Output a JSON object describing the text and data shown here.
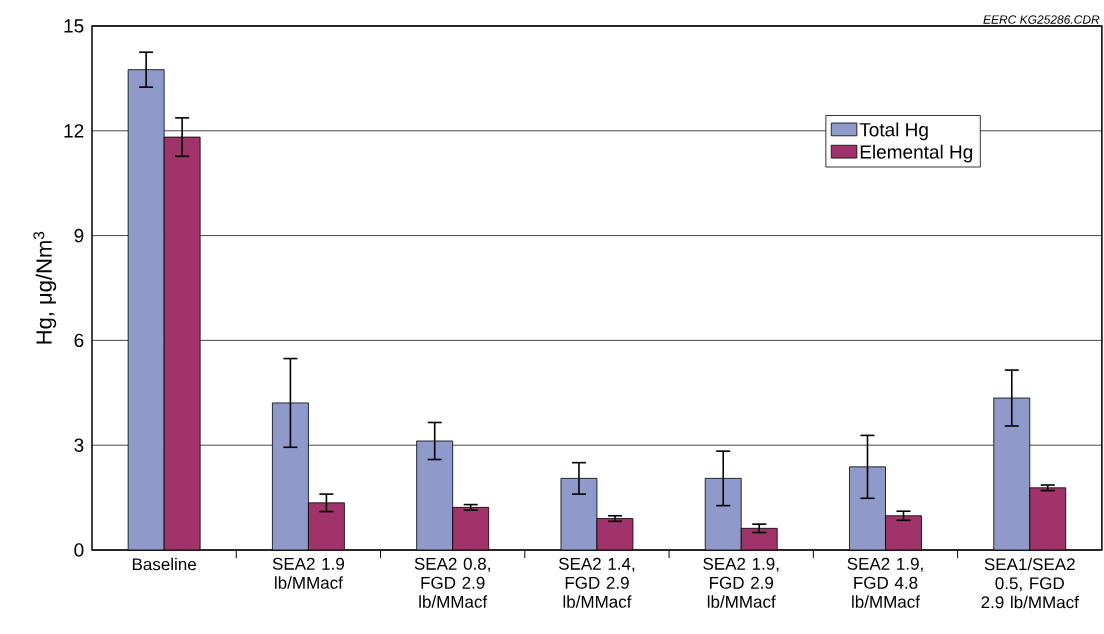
{
  "chart_data": {
    "type": "bar",
    "ylabel": "Hg, μg/Nm$^{3}$",
    "categories": [
      "Baseline",
      "SEA2 1.9 lb/MMacf",
      "SEA2 0.8, FGD 2.9 lb/MMacf",
      "SEA2 1.4, FGD 2.9 lb/MMacf",
      "SEA2 1.9, FGD 2.9 lb/MMacf",
      "SEA2 1.9, FGD 4.8 lb/MMacf",
      "SEA1/SEA2 0.5, FGD 2.9 lb/MMacf"
    ],
    "series": [
      {
        "name": "Total Hg",
        "color": "#8f9acb",
        "values": [
          13.75,
          4.21,
          3.12,
          2.05,
          2.05,
          2.38,
          4.35
        ],
        "errors": [
          0.5,
          1.27,
          0.53,
          0.45,
          0.78,
          0.9,
          0.8
        ]
      },
      {
        "name": "Elemental Hg",
        "color": "#a0336a",
        "values": [
          11.82,
          1.35,
          1.22,
          0.9,
          0.62,
          0.98,
          1.78
        ],
        "errors": [
          0.55,
          0.25,
          0.08,
          0.08,
          0.12,
          0.13,
          0.08
        ]
      }
    ],
    "ylim": [
      0,
      15
    ],
    "yticks": [
      0,
      3,
      6,
      9,
      12,
      15
    ],
    "grid": "y",
    "legend": "top right",
    "annotations": [
      "EERC KG25286.CDR"
    ]
  }
}
